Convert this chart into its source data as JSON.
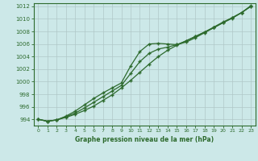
{
  "xlabel": "Graphe pression niveau de la mer (hPa)",
  "x": [
    0,
    1,
    2,
    3,
    4,
    5,
    6,
    7,
    8,
    9,
    10,
    11,
    12,
    13,
    14,
    15,
    16,
    17,
    18,
    19,
    20,
    21,
    22,
    23
  ],
  "line1": [
    994.0,
    993.7,
    993.9,
    994.3,
    994.8,
    995.4,
    996.1,
    997.0,
    997.9,
    999.0,
    1000.2,
    1001.5,
    1002.8,
    1004.0,
    1005.0,
    1005.8,
    1006.5,
    1007.2,
    1007.9,
    1008.6,
    1009.4,
    1010.1,
    1011.0,
    1012.0
  ],
  "line2": [
    994.0,
    993.7,
    993.9,
    994.5,
    995.3,
    996.3,
    997.3,
    998.2,
    999.0,
    999.8,
    1002.5,
    1004.8,
    1006.0,
    1006.1,
    1006.0,
    1005.9,
    1006.3,
    1007.0,
    1007.8,
    1008.6,
    1009.4,
    1010.2,
    1011.0,
    1012.0
  ],
  "line3": [
    994.0,
    993.7,
    993.9,
    994.4,
    995.0,
    995.8,
    996.7,
    997.6,
    998.5,
    999.4,
    1001.3,
    1003.2,
    1004.5,
    1005.2,
    1005.5,
    1005.9,
    1006.5,
    1007.2,
    1007.9,
    1008.7,
    1009.5,
    1010.2,
    1011.0,
    1012.1
  ],
  "line_color": "#2d6a2d",
  "bg_color": "#cce8e8",
  "grid_color": "#b0c8c8",
  "ylim": [
    993.0,
    1012.5
  ],
  "yticks": [
    994,
    996,
    998,
    1000,
    1002,
    1004,
    1006,
    1008,
    1010,
    1012
  ],
  "xticks": [
    0,
    1,
    2,
    3,
    4,
    5,
    6,
    7,
    8,
    9,
    10,
    11,
    12,
    13,
    14,
    15,
    16,
    17,
    18,
    19,
    20,
    21,
    22,
    23
  ],
  "marker": "+"
}
